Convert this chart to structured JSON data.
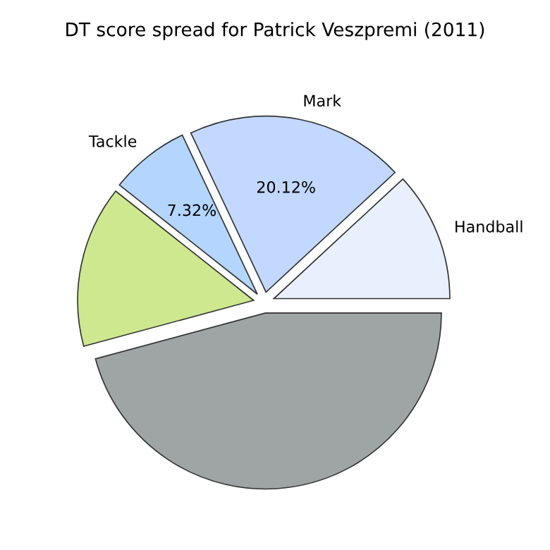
{
  "chart_data": {
    "type": "pie",
    "title": "DT score spread for Patrick Veszpremi (2011)",
    "categories": [
      "Handball",
      "Mark",
      "Tackle",
      null,
      null
    ],
    "values": [
      11.9,
      20.12,
      7.32,
      14.86,
      45.8
    ],
    "colors": [
      "#e8f0fe",
      "#c2d8fe",
      "#b3d5fe",
      "#cde88f",
      "#9fa5a5"
    ],
    "value_labels": [
      null,
      "20.12%",
      "7.32%",
      null,
      null
    ]
  }
}
